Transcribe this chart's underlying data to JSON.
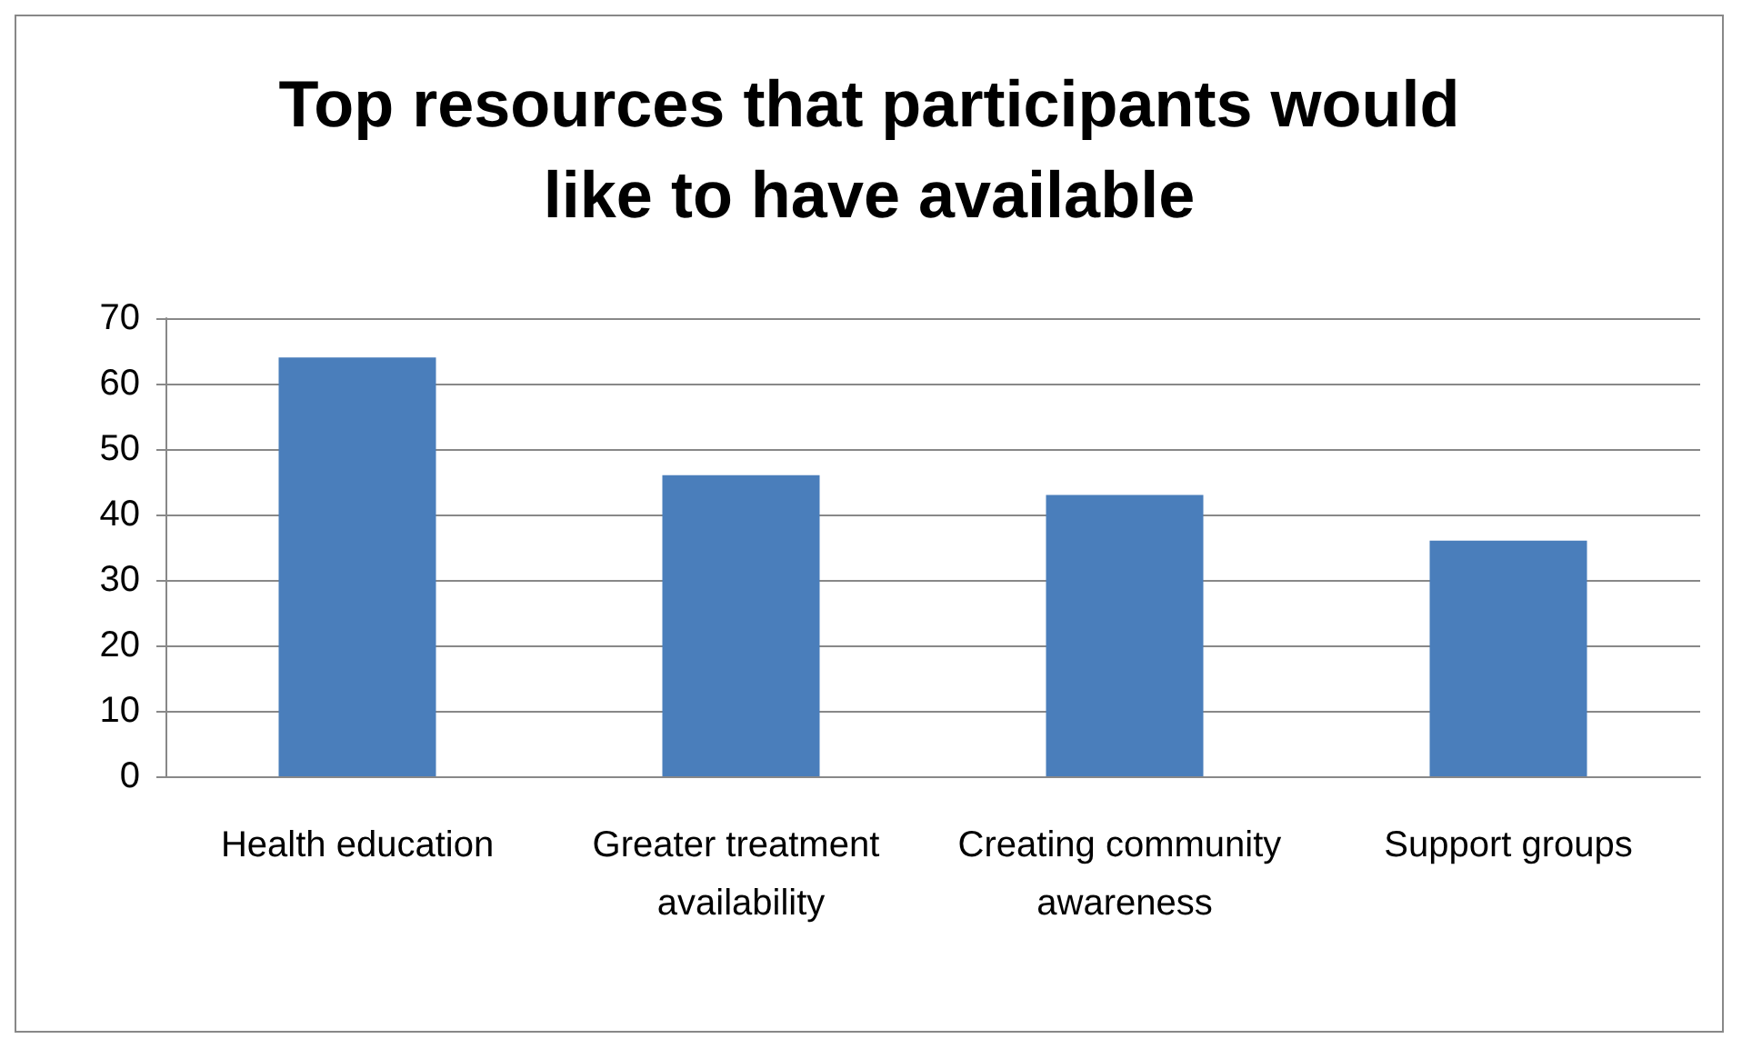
{
  "chart_data": {
    "type": "bar",
    "title": "Top resources that participants would\nlike to have available",
    "categories": [
      "Health education",
      "Greater treatment availability",
      "Creating community awareness",
      "Support groups"
    ],
    "values": [
      64,
      46,
      43,
      36
    ],
    "color": "#4a7ebb",
    "ylim": [
      0,
      70
    ],
    "yticks": [
      0,
      10,
      20,
      30,
      40,
      50,
      60,
      70
    ],
    "grid": true
  }
}
